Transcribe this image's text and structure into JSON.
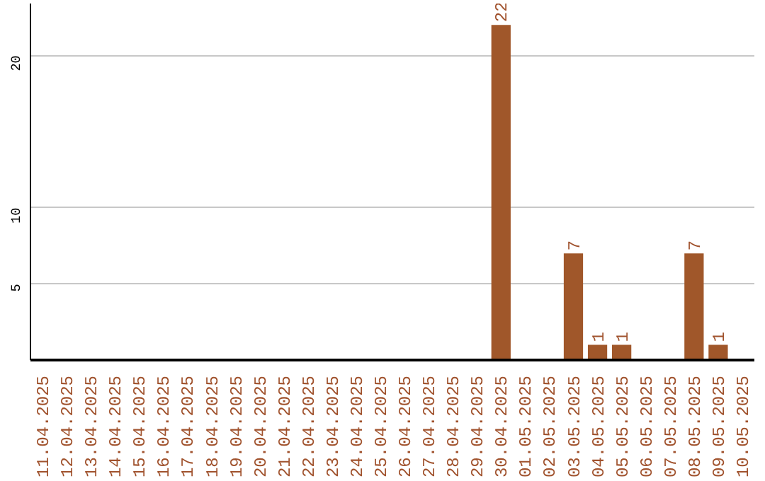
{
  "chart_data": {
    "type": "bar",
    "categories": [
      "11.04.2025",
      "12.04.2025",
      "13.04.2025",
      "14.04.2025",
      "15.04.2025",
      "16.04.2025",
      "17.04.2025",
      "18.04.2025",
      "19.04.2025",
      "20.04.2025",
      "21.04.2025",
      "22.04.2025",
      "23.04.2025",
      "24.04.2025",
      "25.04.2025",
      "26.04.2025",
      "27.04.2025",
      "28.04.2025",
      "29.04.2025",
      "30.04.2025",
      "01.05.2025",
      "02.05.2025",
      "03.05.2025",
      "04.05.2025",
      "05.05.2025",
      "06.05.2025",
      "07.05.2025",
      "08.05.2025",
      "09.05.2025",
      "10.05.2025"
    ],
    "values": [
      0,
      0,
      0,
      0,
      0,
      0,
      0,
      0,
      0,
      0,
      0,
      0,
      0,
      0,
      0,
      0,
      0,
      0,
      0,
      22,
      0,
      0,
      7,
      1,
      1,
      0,
      0,
      7,
      1,
      0
    ],
    "value_labels": [
      null,
      null,
      null,
      null,
      null,
      null,
      null,
      null,
      null,
      null,
      null,
      null,
      null,
      null,
      null,
      null,
      null,
      null,
      null,
      "22",
      null,
      null,
      "7",
      "1",
      "1",
      null,
      null,
      "7",
      "1",
      null
    ],
    "color": "#a0572a",
    "ylim": [
      0,
      23.4
    ],
    "yticks": [
      5,
      10,
      20
    ],
    "grid": "y"
  }
}
